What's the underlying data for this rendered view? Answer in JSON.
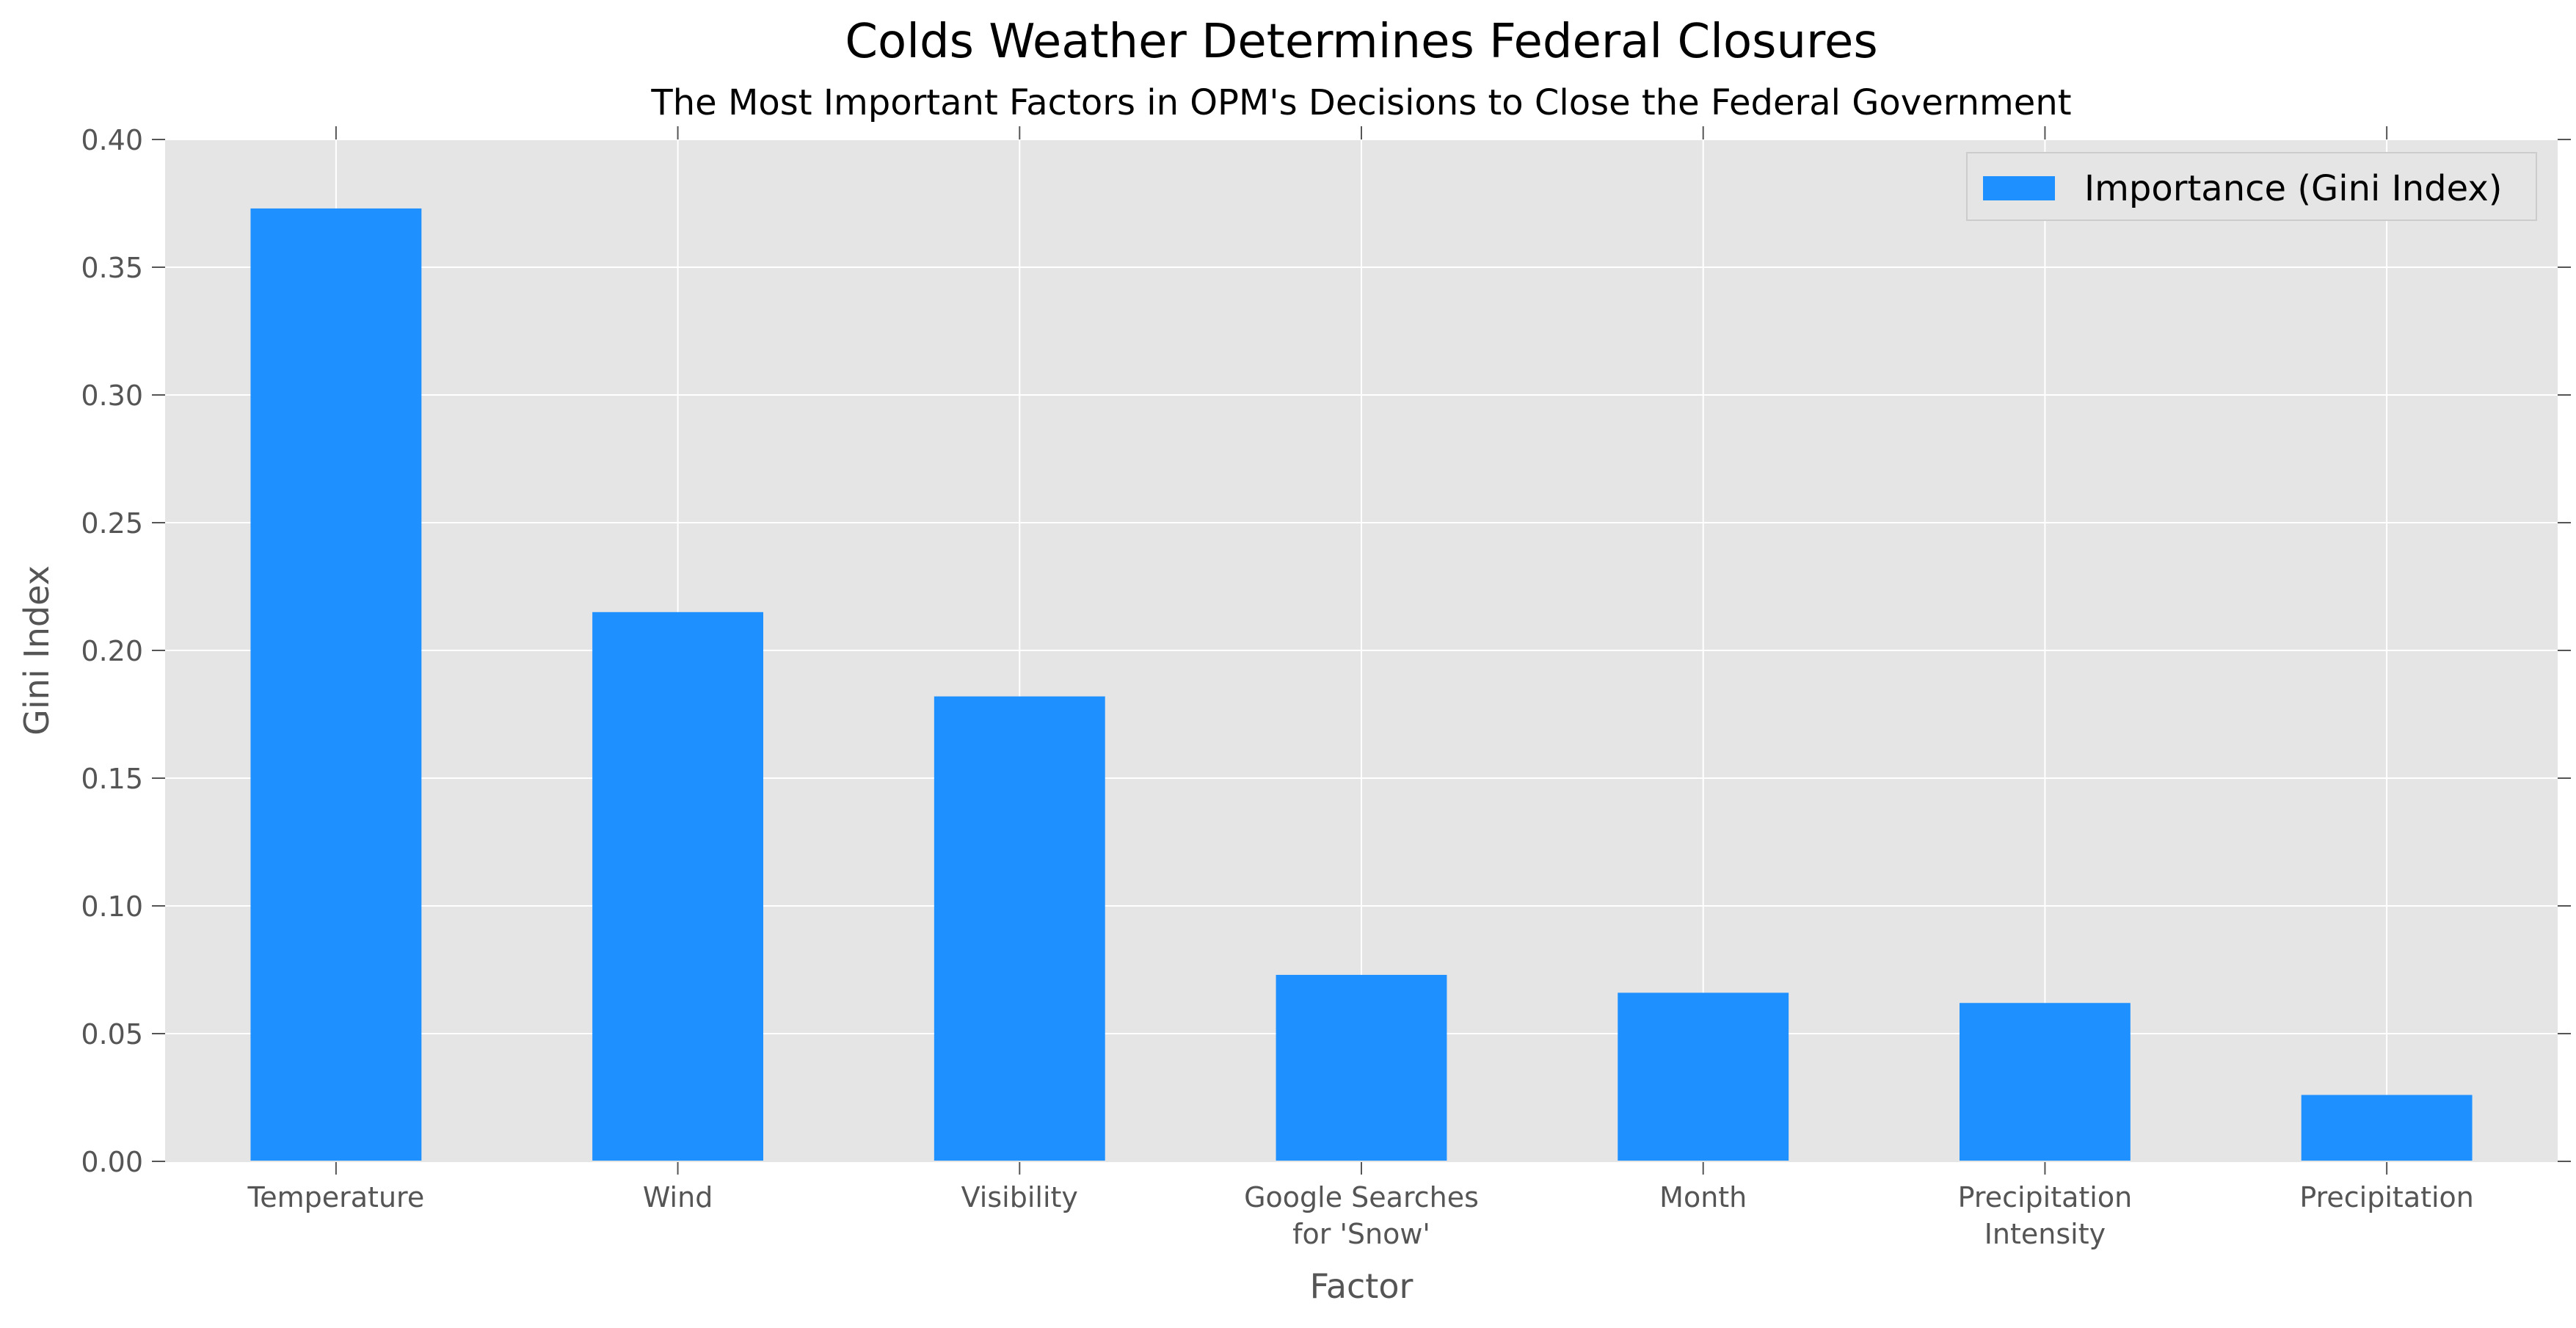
{
  "chart_data": {
    "type": "bar",
    "title": "Colds Weather Determines Federal Closures",
    "subtitle": "The Most Important Factors in OPM's Decisions to Close the Federal Government",
    "xlabel": "Factor",
    "ylabel": "Gini Index",
    "categories": [
      [
        "Temperature"
      ],
      [
        "Wind"
      ],
      [
        "Visibility"
      ],
      [
        "Google Searches",
        "for 'Snow'"
      ],
      [
        "Month"
      ],
      [
        "Precipitation",
        "Intensity"
      ],
      [
        "Precipitation"
      ]
    ],
    "series": [
      {
        "name": "Importance (Gini Index)",
        "values": [
          0.373,
          0.215,
          0.182,
          0.073,
          0.066,
          0.062,
          0.026
        ]
      }
    ],
    "ylim": [
      0,
      0.4
    ],
    "yticks": [
      "0.00",
      "0.05",
      "0.10",
      "0.15",
      "0.20",
      "0.25",
      "0.30",
      "0.35",
      "0.40"
    ],
    "grid": true,
    "legend_position": "top-right",
    "colors": {
      "bar": "#1E90FF",
      "plot_bg": "#E5E5E5",
      "grid": "#FFFFFF",
      "tick_text": "#555555"
    }
  }
}
